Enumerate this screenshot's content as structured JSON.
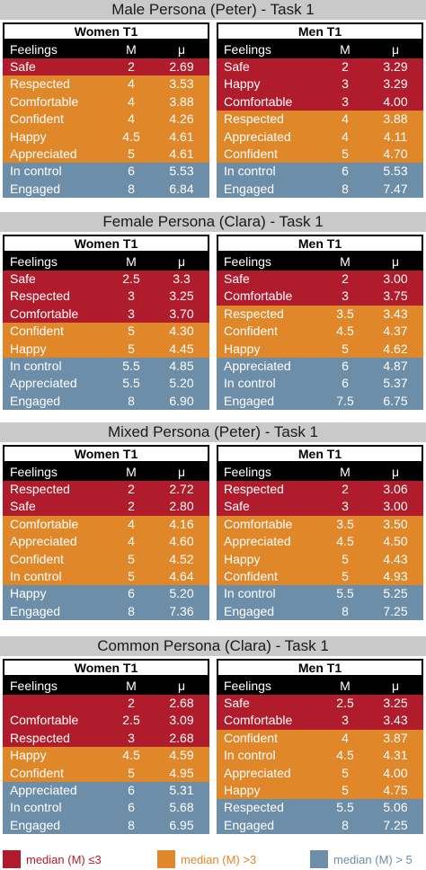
{
  "colors": {
    "red": "#b01c2c",
    "orange": "#e0872a",
    "blue": "#6c8ea8",
    "black": "#000000",
    "title_bg": "#c9c9c9"
  },
  "headers": {
    "feelings": "Feelings",
    "m": "M",
    "mu": "μ"
  },
  "sections": [
    {
      "title": "Male Persona (Peter) - Task 1",
      "tables": [
        {
          "label": "Women T1",
          "rows": [
            {
              "name": "Safe",
              "m": "2",
              "mu": "2.69",
              "cat": "red"
            },
            {
              "name": "Respected",
              "m": "4",
              "mu": "3.53",
              "cat": "orange"
            },
            {
              "name": "Comfortable",
              "m": "4",
              "mu": "3.88",
              "cat": "orange"
            },
            {
              "name": "Confident",
              "m": "4",
              "mu": "4.26",
              "cat": "orange"
            },
            {
              "name": "Happy",
              "m": "4.5",
              "mu": "4.61",
              "cat": "orange"
            },
            {
              "name": "Appreciated",
              "m": "5",
              "mu": "4.61",
              "cat": "orange"
            },
            {
              "name": "In control",
              "m": "6",
              "mu": "5.53",
              "cat": "blue"
            },
            {
              "name": "Engaged",
              "m": "8",
              "mu": "6.84",
              "cat": "blue"
            }
          ]
        },
        {
          "label": "Men T1",
          "rows": [
            {
              "name": "Safe",
              "m": "2",
              "mu": "3.29",
              "cat": "red"
            },
            {
              "name": "Happy",
              "m": "3",
              "mu": "3.29",
              "cat": "red"
            },
            {
              "name": "Comfortable",
              "m": "3",
              "mu": "4.00",
              "cat": "red"
            },
            {
              "name": "Respected",
              "m": "4",
              "mu": "3.88",
              "cat": "orange"
            },
            {
              "name": "Appreciated",
              "m": "4",
              "mu": "4.11",
              "cat": "orange"
            },
            {
              "name": "Confident",
              "m": "5",
              "mu": "4.70",
              "cat": "orange"
            },
            {
              "name": "In control",
              "m": "6",
              "mu": "5.53",
              "cat": "blue"
            },
            {
              "name": "Engaged",
              "m": "8",
              "mu": "7.47",
              "cat": "blue"
            }
          ]
        }
      ]
    },
    {
      "title": "Female Persona (Clara) - Task 1",
      "tables": [
        {
          "label": "Women T1",
          "rows": [
            {
              "name": "Safe",
              "m": "2.5",
              "mu": "3.3",
              "cat": "red"
            },
            {
              "name": "Respected",
              "m": "3",
              "mu": "3.25",
              "cat": "red"
            },
            {
              "name": "Comfortable",
              "m": "3",
              "mu": "3.70",
              "cat": "red"
            },
            {
              "name": "Confident",
              "m": "5",
              "mu": "4.30",
              "cat": "orange"
            },
            {
              "name": "Happy",
              "m": "5",
              "mu": "4.45",
              "cat": "orange"
            },
            {
              "name": "In control",
              "m": "5.5",
              "mu": "4.85",
              "cat": "blue"
            },
            {
              "name": "Appreciated",
              "m": "5.5",
              "mu": "5.20",
              "cat": "blue"
            },
            {
              "name": "Engaged",
              "m": "8",
              "mu": "6.90",
              "cat": "blue"
            }
          ]
        },
        {
          "label": "Men T1",
          "rows": [
            {
              "name": "Safe",
              "m": "2",
              "mu": "3.00",
              "cat": "red"
            },
            {
              "name": "Comfortable",
              "m": "3",
              "mu": "3.75",
              "cat": "red"
            },
            {
              "name": "Respected",
              "m": "3.5",
              "mu": "3.43",
              "cat": "orange"
            },
            {
              "name": "Confident",
              "m": "4.5",
              "mu": "4.37",
              "cat": "orange"
            },
            {
              "name": "Happy",
              "m": "5",
              "mu": "4.62",
              "cat": "orange"
            },
            {
              "name": "Appreciated",
              "m": "6",
              "mu": "4.87",
              "cat": "blue"
            },
            {
              "name": "In control",
              "m": "6",
              "mu": "5.37",
              "cat": "blue"
            },
            {
              "name": "Engaged",
              "m": "7.5",
              "mu": "6.75",
              "cat": "blue"
            }
          ]
        }
      ]
    },
    {
      "title": "Mixed Persona (Peter) - Task 1",
      "tables": [
        {
          "label": "Women T1",
          "rows": [
            {
              "name": "Respected",
              "m": "2",
              "mu": "2.72",
              "cat": "red"
            },
            {
              "name": "Safe",
              "m": "2",
              "mu": "2.80",
              "cat": "red"
            },
            {
              "name": "Comfortable",
              "m": "4",
              "mu": "4.16",
              "cat": "orange"
            },
            {
              "name": "Appreciated",
              "m": "4",
              "mu": "4.60",
              "cat": "orange"
            },
            {
              "name": "Confident",
              "m": "5",
              "mu": "4.52",
              "cat": "orange"
            },
            {
              "name": "In control",
              "m": "5",
              "mu": "4.64",
              "cat": "orange"
            },
            {
              "name": "Happy",
              "m": "6",
              "mu": "5.20",
              "cat": "blue"
            },
            {
              "name": "Engaged",
              "m": "8",
              "mu": "7.36",
              "cat": "blue"
            }
          ]
        },
        {
          "label": "Men T1",
          "rows": [
            {
              "name": "Respected",
              "m": "2",
              "mu": "3.06",
              "cat": "red"
            },
            {
              "name": "Safe",
              "m": "3",
              "mu": "3.00",
              "cat": "red"
            },
            {
              "name": "Comfortable",
              "m": "3.5",
              "mu": "3.50",
              "cat": "orange"
            },
            {
              "name": "Appreciated",
              "m": "4.5",
              "mu": "4.50",
              "cat": "orange"
            },
            {
              "name": "Happy",
              "m": "5",
              "mu": "4.43",
              "cat": "orange"
            },
            {
              "name": "Confident",
              "m": "5",
              "mu": "4.93",
              "cat": "orange"
            },
            {
              "name": "In control",
              "m": "5.5",
              "mu": "5.25",
              "cat": "blue"
            },
            {
              "name": "Engaged",
              "m": "8",
              "mu": "7.25",
              "cat": "blue"
            }
          ]
        }
      ]
    },
    {
      "title": "Common Persona (Clara) - Task 1",
      "tables": [
        {
          "label": "Women T1",
          "rows": [
            {
              "name": "",
              "m": "2",
              "mu": "2.68",
              "cat": "red"
            },
            {
              "name": "Comfortable",
              "m": "2.5",
              "mu": "3.09",
              "cat": "red"
            },
            {
              "name": "Respected",
              "m": "3",
              "mu": "2.68",
              "cat": "red"
            },
            {
              "name": "Happy",
              "m": "4.5",
              "mu": "4.59",
              "cat": "orange"
            },
            {
              "name": "Confident",
              "m": "5",
              "mu": "4.95",
              "cat": "orange"
            },
            {
              "name": "Appreciated",
              "m": "6",
              "mu": "5.31",
              "cat": "blue"
            },
            {
              "name": "In control",
              "m": "6",
              "mu": "5.68",
              "cat": "blue"
            },
            {
              "name": "Engaged",
              "m": "8",
              "mu": "6.95",
              "cat": "blue"
            }
          ]
        },
        {
          "label": "Men T1",
          "rows": [
            {
              "name": "Safe",
              "m": "2.5",
              "mu": "3.25",
              "cat": "red"
            },
            {
              "name": "Comfortable",
              "m": "3",
              "mu": "3.43",
              "cat": "red"
            },
            {
              "name": "Confident",
              "m": "4",
              "mu": "3.87",
              "cat": "orange"
            },
            {
              "name": "In control",
              "m": "4.5",
              "mu": "4.31",
              "cat": "orange"
            },
            {
              "name": "Appreciated",
              "m": "5",
              "mu": "4.00",
              "cat": "orange"
            },
            {
              "name": "Happy",
              "m": "5",
              "mu": "4.75",
              "cat": "orange"
            },
            {
              "name": "Respected",
              "m": "5.5",
              "mu": "5.06",
              "cat": "blue"
            },
            {
              "name": "Engaged",
              "m": "8",
              "mu": "7.25",
              "cat": "blue"
            }
          ]
        }
      ]
    }
  ],
  "legend": [
    {
      "label": "median (M) ≤3",
      "cat": "red"
    },
    {
      "label": "median (M) >3",
      "cat": "orange"
    },
    {
      "label": "median (M) > 5",
      "cat": "blue"
    }
  ]
}
